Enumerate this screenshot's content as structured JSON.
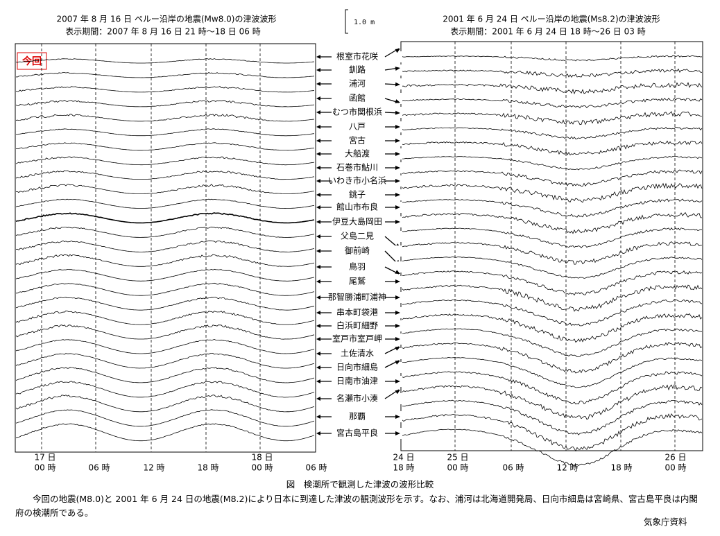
{
  "scale_label": "1.0 m",
  "left_panel": {
    "title": "2007 年 8 月 16 日  ペルー沿岸の地震(Mw8.0)の津波波形",
    "period": "表示期間：2007 年 8 月 16 日 21 時～18 日 06 時",
    "tag": "今回",
    "time_labels": [
      [
        "17 日",
        "00 時"
      ],
      [
        "06 時"
      ],
      [
        "12 時"
      ],
      [
        "18 時"
      ],
      [
        "18 日",
        "00 時"
      ],
      [
        "06 時"
      ]
    ]
  },
  "right_panel": {
    "title": "2001 年 6 月 24 日  ペルー沿岸の地震(Ms8.2)の津波波形",
    "period": "表示期間：2001 年 6 月 24 日 18 時～26 日 03 時",
    "time_labels": [
      [
        "24 日",
        "18 時"
      ],
      [
        "25 日",
        "00 時"
      ],
      [
        "06 時"
      ],
      [
        "12 時"
      ],
      [
        "18 時"
      ],
      [
        "26 日",
        "00 時"
      ]
    ]
  },
  "stations": [
    "根室市花咲",
    "釧路",
    "浦河",
    "函館",
    "むつ市関根浜",
    "八戸",
    "宮古",
    "大船渡",
    "石巻市鮎川",
    "いわき市小名浜",
    "銚子",
    "館山市布良",
    "伊豆大島岡田",
    "父島二見",
    "御前崎",
    "鳥羽",
    "尾鷲",
    "那智勝浦町浦神",
    "串本町袋港",
    "白浜町細野",
    "室戸市室戸岬",
    "土佐清水",
    "日向市細島",
    "日南市油津",
    "名瀬市小湊",
    "那覇",
    "宮古島平良"
  ],
  "caption": {
    "title": "図　検潮所で観測した津波の波形比較",
    "body": "今回の地震(M8.0)と 2001 年 6 月 24 日の地震(M8.2)により日本に到達した津波の観測波形を示す。なお、浦河は北海道開発局、日向市細島は宮崎県、宮古島平良は内閣府の検潮所である。",
    "source": "気象庁資料"
  }
}
